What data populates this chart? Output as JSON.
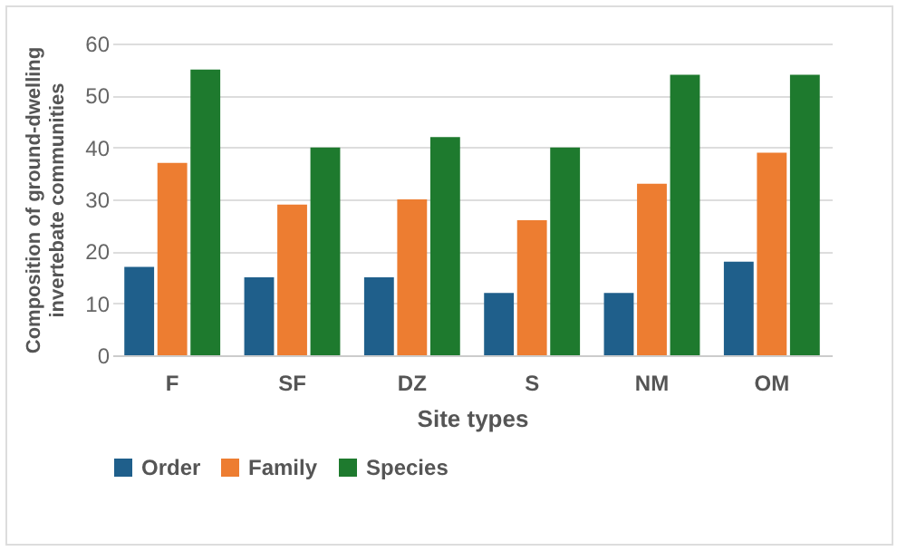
{
  "chart_data": {
    "type": "bar",
    "xlabel": "Site types",
    "ylabel": "Composition of ground-dwelling\ninvertebate communities",
    "categories": [
      "F",
      "SF",
      "DZ",
      "S",
      "NM",
      "OM"
    ],
    "series": [
      {
        "name": "Order",
        "color": "#1f5f8b",
        "values": [
          17,
          15,
          15,
          12,
          12,
          18
        ]
      },
      {
        "name": "Family",
        "color": "#ed7d31",
        "values": [
          37,
          29,
          30,
          26,
          33,
          39
        ]
      },
      {
        "name": "Species",
        "color": "#1e7a2e",
        "values": [
          55,
          40,
          42,
          40,
          54,
          54
        ]
      }
    ],
    "ylim": [
      0,
      60
    ],
    "yticks": [
      0,
      10,
      20,
      30,
      40,
      50,
      60
    ],
    "grid": "y",
    "legend": "bottom"
  }
}
